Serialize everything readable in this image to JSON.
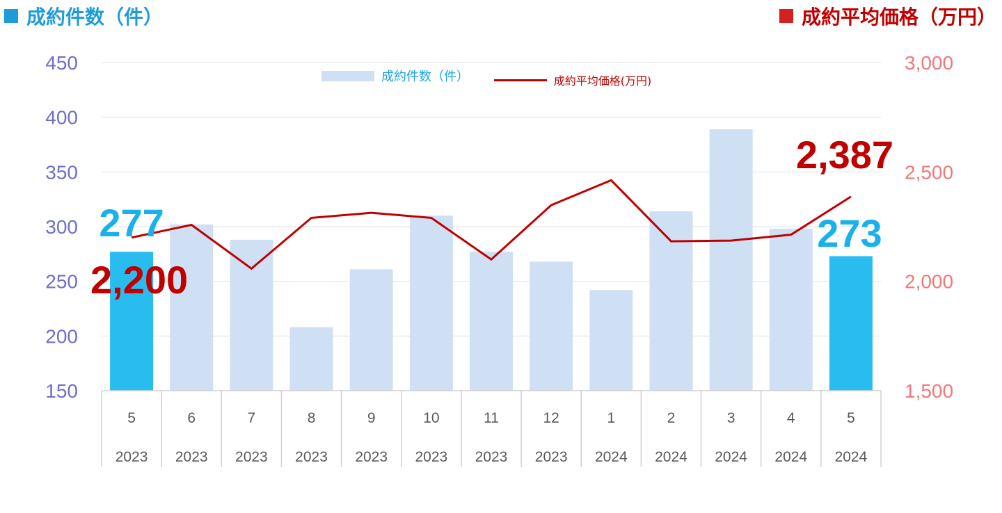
{
  "titles": {
    "left": "成約件数（件）",
    "right": "成約平均価格（万円）"
  },
  "colors": {
    "bar": "#cfe0f4",
    "bar_highlight": "#29bdef",
    "line": "#c00000",
    "left_axis": "#6f6fcc",
    "right_axis": "#f07878",
    "title_left": "#1f9bd9",
    "title_right": "#c00000"
  },
  "chart_data": {
    "type": "bar",
    "categories": [
      "5",
      "6",
      "7",
      "8",
      "9",
      "10",
      "11",
      "12",
      "1",
      "2",
      "3",
      "4",
      "5"
    ],
    "years": [
      "2023",
      "2023",
      "2023",
      "2023",
      "2023",
      "2023",
      "2023",
      "2023",
      "2024",
      "2024",
      "2024",
      "2024",
      "2024"
    ],
    "series": [
      {
        "name": "成約件数（件）",
        "type": "bar",
        "axis": "left",
        "values": [
          277,
          302,
          288,
          208,
          261,
          310,
          277,
          268,
          242,
          314,
          389,
          298,
          273
        ]
      },
      {
        "name": "成約平均価格(万円)",
        "type": "line",
        "axis": "right",
        "values": [
          2200,
          2258,
          2058,
          2290,
          2313,
          2290,
          2100,
          2348,
          2462,
          2183,
          2186,
          2213,
          2387
        ]
      }
    ],
    "left_axis": {
      "range": [
        150,
        450
      ],
      "ticks": [
        "150",
        "200",
        "250",
        "300",
        "350",
        "400",
        "450"
      ]
    },
    "right_axis": {
      "range": [
        1500,
        3000
      ],
      "ticks": [
        "1,500",
        "2,000",
        "2,500",
        "3,000"
      ]
    },
    "highlight_indices": [
      0,
      12
    ],
    "annotations": {
      "first_count": "277",
      "last_count": "273",
      "first_price": "2,200",
      "last_price": "2,387"
    },
    "legend": {
      "bar_label": "成約件数（件）",
      "line_label": "成約平均価格(万円)",
      "placement": "top-center"
    },
    "grid": true
  }
}
